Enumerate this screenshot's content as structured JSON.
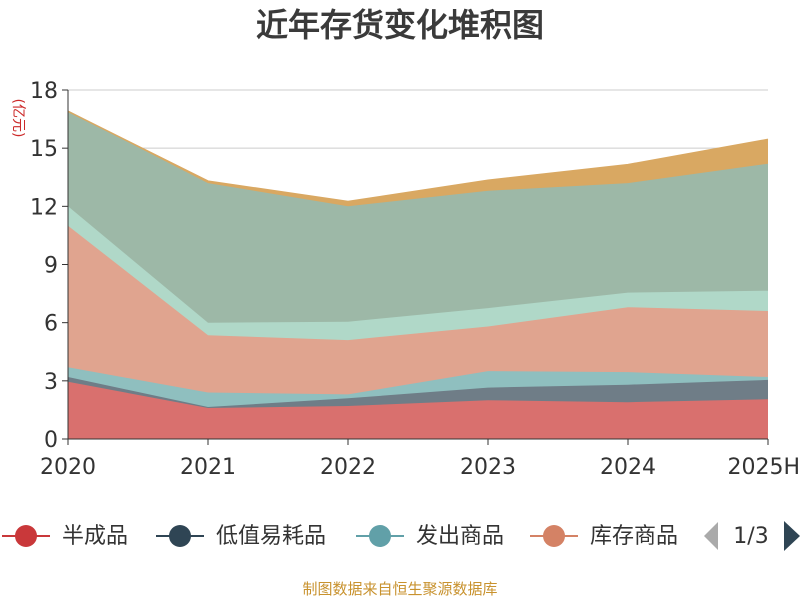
{
  "chart_data": {
    "type": "area",
    "stacked": true,
    "title": "近年存货变化堆积图",
    "ylabel": "(亿元)",
    "x": [
      "2020",
      "2021",
      "2022",
      "2023",
      "2024",
      "2025H"
    ],
    "ylim": [
      0,
      18
    ],
    "yticks": [
      0,
      3,
      6,
      9,
      12,
      15,
      18
    ],
    "grid": true,
    "series": [
      {
        "name": "半成品",
        "color": "#d9706e",
        "values": [
          2.95,
          1.6,
          1.7,
          2.0,
          1.9,
          2.05
        ]
      },
      {
        "name": "低值易耗品",
        "color": "#6f7d87",
        "values": [
          0.25,
          0.05,
          0.4,
          0.65,
          0.9,
          1.0
        ]
      },
      {
        "name": "发出商品",
        "color": "#8fbfbf",
        "values": [
          0.5,
          0.75,
          0.2,
          0.85,
          0.65,
          0.15
        ]
      },
      {
        "name": "库存商品",
        "color": "#e0a48f",
        "values": [
          7.3,
          2.95,
          2.8,
          2.3,
          3.35,
          3.4
        ]
      },
      {
        "name": "",
        "color": "#b0d8c8",
        "values": [
          1.0,
          0.65,
          0.95,
          0.95,
          0.75,
          1.05
        ]
      },
      {
        "name": "",
        "color": "#9db8a7",
        "values": [
          4.9,
          7.2,
          5.95,
          6.05,
          5.65,
          6.55
        ]
      },
      {
        "name": "",
        "color": "#d9a862",
        "values": [
          0.0,
          0.1,
          0.25,
          0.55,
          0.95,
          1.25
        ]
      }
    ],
    "legend": {
      "placement": "bottom",
      "items": [
        {
          "name": "半成品",
          "color": "#c9383a"
        },
        {
          "name": "低值易耗品",
          "color": "#2f4554"
        },
        {
          "name": "发出商品",
          "color": "#61a0a8"
        },
        {
          "name": "库存商品",
          "color": "#d48265"
        }
      ],
      "page": "1/3"
    }
  },
  "source_text": "制图数据来自恒生聚源数据库"
}
